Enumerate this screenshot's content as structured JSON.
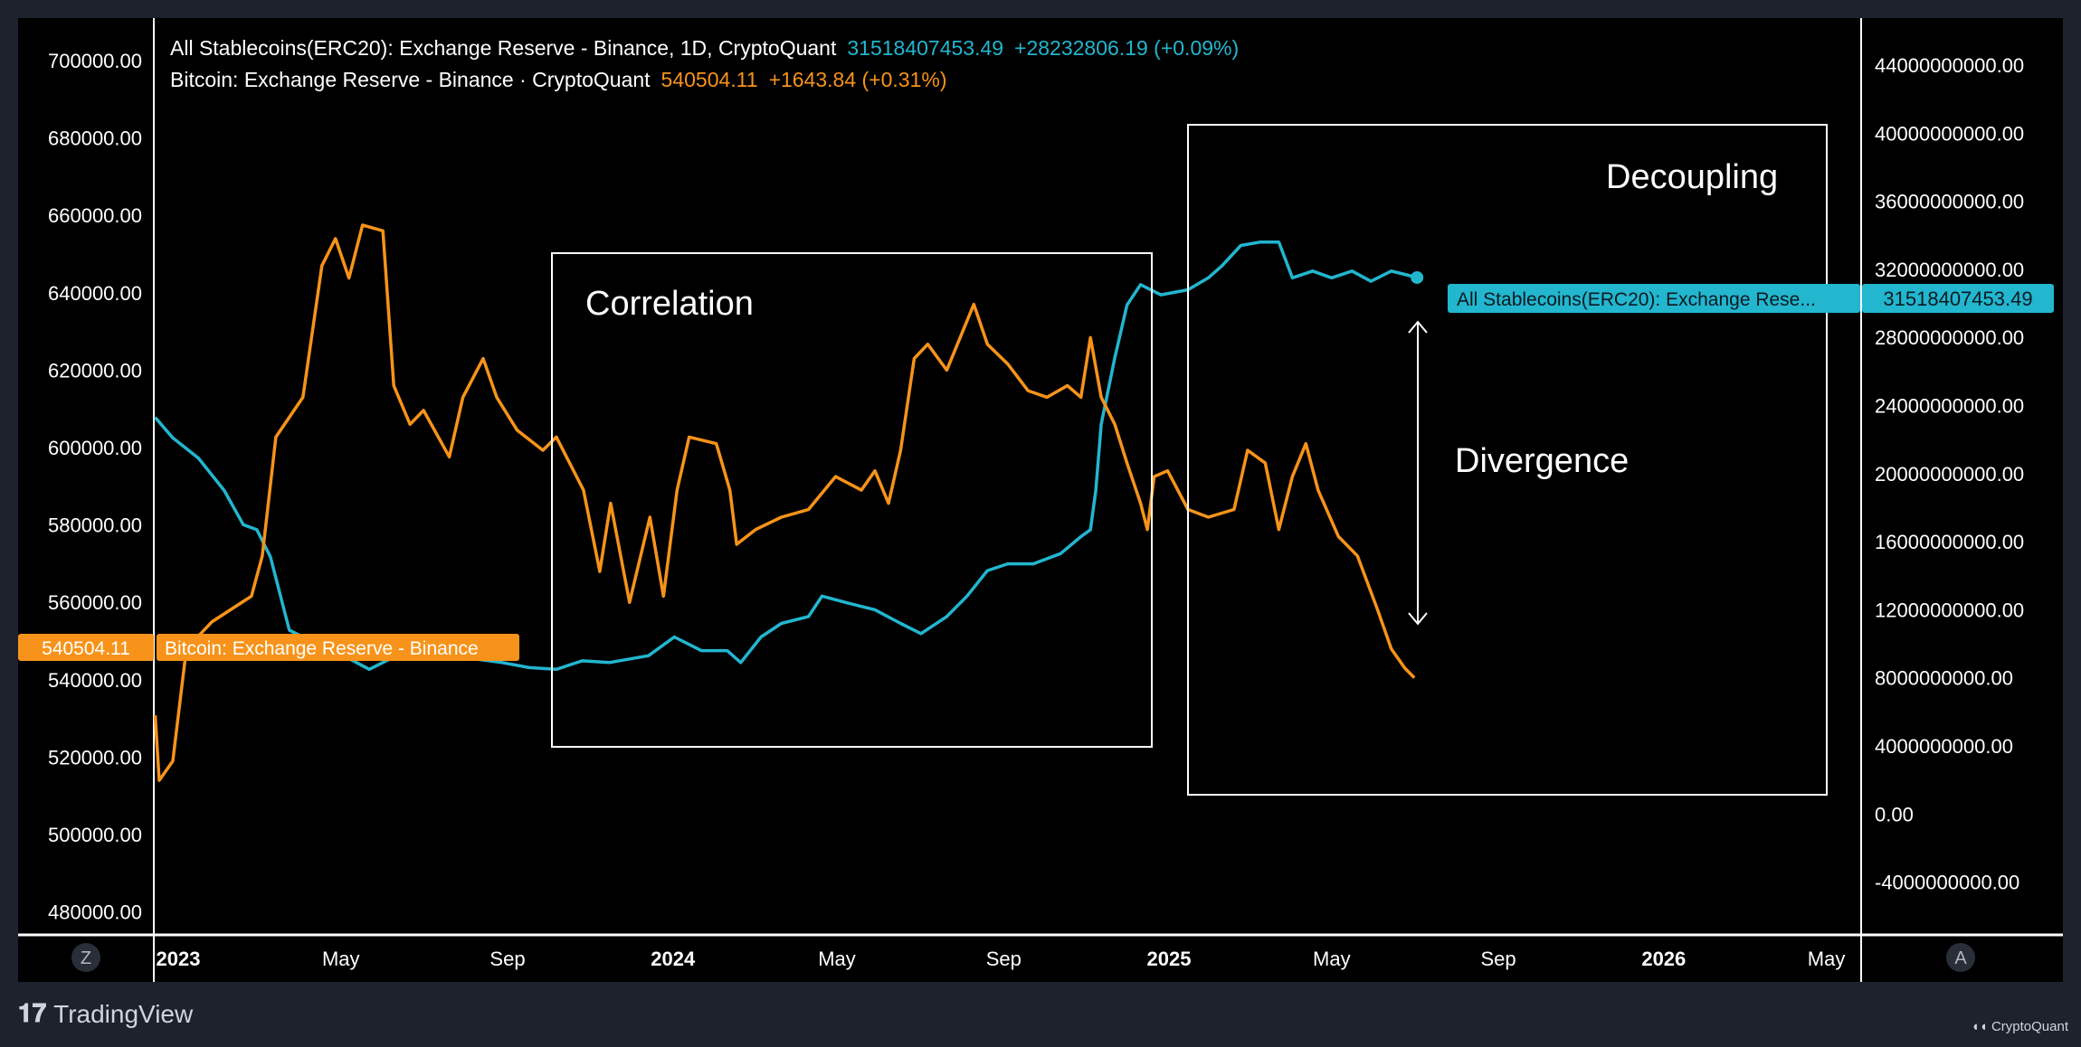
{
  "legend": {
    "stable": {
      "title": "All Stablecoins(ERC20): Exchange Reserve - Binance, 1D, CryptoQuant",
      "value": "31518407453.49",
      "change": "+28232806.19 (+0.09%)"
    },
    "btc": {
      "title": "Bitcoin: Exchange Reserve - Binance · CryptoQuant",
      "value": "540504.11",
      "change": "+1643.84 (+0.31%)"
    }
  },
  "colors": {
    "btc": "#f7931a",
    "stable": "#22b6cf",
    "background": "#000000",
    "frame": "#1e222d"
  },
  "labels": {
    "btc_name": "Bitcoin: Exchange Reserve - Binance",
    "btc_value": "540504.11",
    "stable_name": "All Stablecoins(ERC20): Exchange Rese...",
    "stable_value": "31518407453.49"
  },
  "annotations": {
    "correlation": "Correlation",
    "decoupling": "Decoupling",
    "divergence": "Divergence"
  },
  "buttons": {
    "left": "Z",
    "right": "A"
  },
  "footer": {
    "tradingview": "TradingView",
    "cryptoquant": "CryptoQuant"
  },
  "chart_data": {
    "type": "line",
    "x_ticks": [
      "2023",
      "May",
      "Sep",
      "2024",
      "May",
      "Sep",
      "2025",
      "May",
      "Sep",
      "2026",
      "May"
    ],
    "x_tick_dates": [
      "2023-01-01",
      "2023-05-01",
      "2023-09-01",
      "2024-01-01",
      "2024-05-01",
      "2024-09-01",
      "2025-01-01",
      "2025-05-01",
      "2025-09-01",
      "2026-01-01",
      "2026-05-01"
    ],
    "y_left_ticks": [
      "700000.00",
      "680000.00",
      "660000.00",
      "640000.00",
      "620000.00",
      "600000.00",
      "580000.00",
      "560000.00",
      "540000.00",
      "520000.00",
      "500000.00",
      "480000.00"
    ],
    "y_left_range": [
      476000,
      708000
    ],
    "y_right_ticks": [
      "44000000000.00",
      "40000000000.00",
      "36000000000.00",
      "32000000000.00",
      "28000000000.00",
      "24000000000.00",
      "20000000000.00",
      "16000000000.00",
      "12000000000.00",
      "8000000000.00",
      "4000000000.00",
      "0.00",
      "-4000000000.00"
    ],
    "y_right_range": [
      -6000000000,
      46000000000
    ],
    "grid": false,
    "series": [
      {
        "name": "Bitcoin: Exchange Reserve - Binance",
        "axis": "left",
        "x": [
          "2022-12-15",
          "2022-12-18",
          "2022-12-28",
          "2023-01-07",
          "2023-01-26",
          "2023-02-24",
          "2023-03-04",
          "2023-03-14",
          "2023-04-03",
          "2023-04-17",
          "2023-04-27",
          "2023-05-07",
          "2023-05-17",
          "2023-06-01",
          "2023-06-09",
          "2023-06-21",
          "2023-07-01",
          "2023-07-20",
          "2023-07-30",
          "2023-08-14",
          "2023-08-24",
          "2023-09-08",
          "2023-09-27",
          "2023-10-07",
          "2023-10-27",
          "2023-11-08",
          "2023-11-16",
          "2023-11-30",
          "2023-12-15",
          "2023-12-25",
          "2024-01-04",
          "2024-01-13",
          "2024-02-02",
          "2024-02-12",
          "2024-02-17",
          "2024-03-02",
          "2024-03-21",
          "2024-04-10",
          "2024-04-30",
          "2024-05-19",
          "2024-05-29",
          "2024-06-08",
          "2024-06-17",
          "2024-06-27",
          "2024-07-07",
          "2024-07-21",
          "2024-08-10",
          "2024-08-20",
          "2024-09-04",
          "2024-09-19",
          "2024-10-03",
          "2024-10-18",
          "2024-10-28",
          "2024-11-04",
          "2024-11-12",
          "2024-11-22",
          "2024-12-01",
          "2024-12-11",
          "2024-12-16",
          "2024-12-21",
          "2024-12-31",
          "2025-01-15",
          "2025-01-30",
          "2025-02-18",
          "2025-02-28",
          "2025-03-13",
          "2025-03-23",
          "2025-04-02",
          "2025-04-12",
          "2025-04-21",
          "2025-05-06",
          "2025-05-20",
          "2025-06-04",
          "2025-06-14",
          "2025-06-24",
          "2025-07-01"
        ],
        "values": [
          530800,
          514000,
          519000,
          548000,
          555000,
          561600,
          572000,
          602700,
          613000,
          647000,
          654000,
          643800,
          657500,
          656000,
          616000,
          606000,
          609600,
          597600,
          613000,
          623000,
          613000,
          604500,
          599300,
          602700,
          589000,
          568000,
          585600,
          560000,
          582000,
          561600,
          589000,
          602700,
          601000,
          589000,
          575000,
          578800,
          582000,
          584000,
          592500,
          589000,
          594000,
          585600,
          599300,
          623000,
          626700,
          620000,
          637000,
          626700,
          621600,
          614700,
          613000,
          616000,
          613000,
          628400,
          613000,
          606000,
          596000,
          585600,
          578800,
          592500,
          594000,
          584000,
          582000,
          584000,
          599300,
          596000,
          578800,
          592500,
          601000,
          589000,
          577000,
          572000,
          558000,
          548000,
          543000,
          540504.11
        ]
      },
      {
        "name": "All Stablecoins(ERC20): Exchange Reserve - Binance",
        "axis": "right",
        "x": [
          "2022-12-15",
          "2022-12-28",
          "2023-01-16",
          "2023-02-04",
          "2023-02-18",
          "2023-02-28",
          "2023-03-10",
          "2023-03-24",
          "2023-04-13",
          "2023-05-03",
          "2023-05-22",
          "2023-06-11",
          "2023-07-01",
          "2023-07-20",
          "2023-08-09",
          "2023-08-28",
          "2023-09-17",
          "2023-10-07",
          "2023-10-26",
          "2023-11-15",
          "2023-12-14",
          "2024-01-02",
          "2024-01-22",
          "2024-02-10",
          "2024-02-20",
          "2024-03-06",
          "2024-03-21",
          "2024-04-10",
          "2024-04-20",
          "2024-05-09",
          "2024-05-29",
          "2024-06-17",
          "2024-07-02",
          "2024-07-21",
          "2024-08-05",
          "2024-08-20",
          "2024-09-04",
          "2024-09-23",
          "2024-10-13",
          "2024-10-28",
          "2024-11-04",
          "2024-11-08",
          "2024-11-12",
          "2024-11-22",
          "2024-12-01",
          "2024-12-11",
          "2024-12-26",
          "2025-01-15",
          "2025-01-30",
          "2025-02-09",
          "2025-02-23",
          "2025-03-09",
          "2025-03-23",
          "2025-04-02",
          "2025-04-17",
          "2025-05-01",
          "2025-05-16",
          "2025-05-30",
          "2025-06-14",
          "2025-06-24",
          "2025-07-03"
        ],
        "values": [
          23300000000,
          22100000000,
          20900000000,
          19000000000,
          17000000000,
          16700000000,
          15100000000,
          10800000000,
          10000000000,
          9300000000,
          8500000000,
          9300000000,
          9500000000,
          9300000000,
          9100000000,
          8900000000,
          8600000000,
          8500000000,
          9000000000,
          8900000000,
          9300000000,
          10400000000,
          9600000000,
          9600000000,
          8900000000,
          10400000000,
          11200000000,
          11600000000,
          12800000000,
          12400000000,
          12000000000,
          11200000000,
          10600000000,
          11600000000,
          12800000000,
          14300000000,
          14700000000,
          14700000000,
          15300000000,
          16300000000,
          16700000000,
          19000000000,
          22900000000,
          26800000000,
          29900000000,
          31100000000,
          30500000000,
          30800000000,
          31500000000,
          32200000000,
          33400000000,
          33600000000,
          33600000000,
          31500000000,
          31900000000,
          31500000000,
          31900000000,
          31300000000,
          31900000000,
          31700000000,
          31518407453.49
        ]
      }
    ]
  }
}
